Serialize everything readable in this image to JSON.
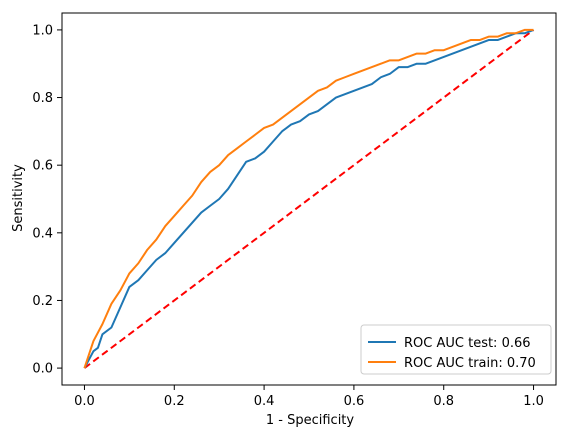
{
  "chart_data": {
    "type": "line",
    "xlabel": "1 - Specificity",
    "ylabel": "Sensitivity",
    "xlim": [
      -0.05,
      1.05
    ],
    "ylim": [
      -0.05,
      1.05
    ],
    "xticks": [
      "0.0",
      "0.2",
      "0.4",
      "0.6",
      "0.8",
      "1.0"
    ],
    "yticks": [
      "0.0",
      "0.2",
      "0.4",
      "0.6",
      "0.8",
      "1.0"
    ],
    "grid": false,
    "legend_position": "lower-right",
    "series": [
      {
        "name": "ROC AUC test: 0.66",
        "color": "#1f77b4",
        "x": [
          0.0,
          0.02,
          0.03,
          0.04,
          0.06,
          0.08,
          0.1,
          0.12,
          0.14,
          0.16,
          0.18,
          0.2,
          0.22,
          0.24,
          0.26,
          0.28,
          0.3,
          0.32,
          0.34,
          0.36,
          0.38,
          0.4,
          0.42,
          0.44,
          0.46,
          0.48,
          0.5,
          0.52,
          0.54,
          0.56,
          0.58,
          0.6,
          0.62,
          0.64,
          0.66,
          0.68,
          0.7,
          0.72,
          0.74,
          0.76,
          0.78,
          0.8,
          0.82,
          0.84,
          0.86,
          0.88,
          0.9,
          0.92,
          0.94,
          0.96,
          0.98,
          1.0
        ],
        "y": [
          0.0,
          0.05,
          0.06,
          0.1,
          0.12,
          0.18,
          0.24,
          0.26,
          0.29,
          0.32,
          0.34,
          0.37,
          0.4,
          0.43,
          0.46,
          0.48,
          0.5,
          0.53,
          0.57,
          0.61,
          0.62,
          0.64,
          0.67,
          0.7,
          0.72,
          0.73,
          0.75,
          0.76,
          0.78,
          0.8,
          0.81,
          0.82,
          0.83,
          0.84,
          0.86,
          0.87,
          0.89,
          0.89,
          0.9,
          0.9,
          0.91,
          0.92,
          0.93,
          0.94,
          0.95,
          0.96,
          0.97,
          0.97,
          0.98,
          0.99,
          0.99,
          1.0
        ]
      },
      {
        "name": "ROC AUC train: 0.70",
        "color": "#ff7f0e",
        "x": [
          0.0,
          0.02,
          0.04,
          0.06,
          0.08,
          0.1,
          0.12,
          0.14,
          0.16,
          0.18,
          0.2,
          0.22,
          0.24,
          0.26,
          0.28,
          0.3,
          0.32,
          0.34,
          0.36,
          0.38,
          0.4,
          0.42,
          0.44,
          0.46,
          0.48,
          0.5,
          0.52,
          0.54,
          0.56,
          0.58,
          0.6,
          0.62,
          0.64,
          0.66,
          0.68,
          0.7,
          0.72,
          0.74,
          0.76,
          0.78,
          0.8,
          0.82,
          0.84,
          0.86,
          0.88,
          0.9,
          0.92,
          0.94,
          0.96,
          0.98,
          1.0
        ],
        "y": [
          0.0,
          0.08,
          0.13,
          0.19,
          0.23,
          0.28,
          0.31,
          0.35,
          0.38,
          0.42,
          0.45,
          0.48,
          0.51,
          0.55,
          0.58,
          0.6,
          0.63,
          0.65,
          0.67,
          0.69,
          0.71,
          0.72,
          0.74,
          0.76,
          0.78,
          0.8,
          0.82,
          0.83,
          0.85,
          0.86,
          0.87,
          0.88,
          0.89,
          0.9,
          0.91,
          0.91,
          0.92,
          0.93,
          0.93,
          0.94,
          0.94,
          0.95,
          0.96,
          0.97,
          0.97,
          0.98,
          0.98,
          0.99,
          0.99,
          1.0,
          1.0
        ]
      },
      {
        "x": [
          0.0,
          1.0
        ],
        "y": [
          0.0,
          1.0
        ],
        "color": "#ff0000",
        "style": "dashed"
      }
    ]
  }
}
